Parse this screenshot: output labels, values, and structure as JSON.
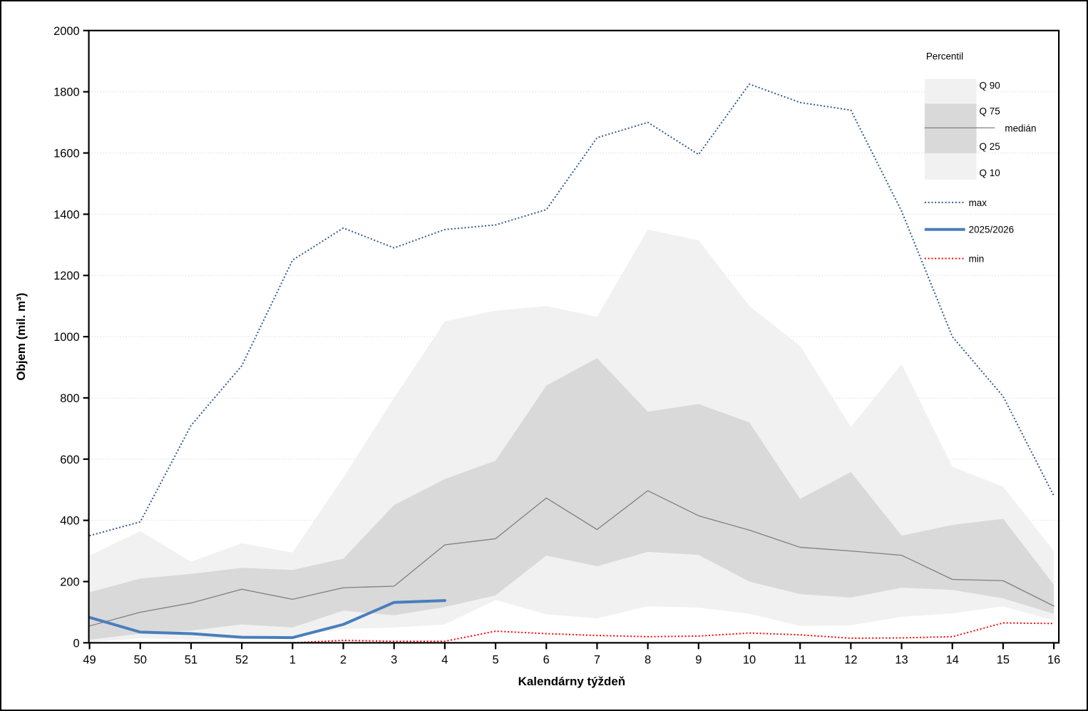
{
  "chart_data": {
    "type": "area",
    "subtype": "percentile-fan-chart-with-lines",
    "xlabel": "Kalendárny týždeň",
    "ylabel": "Objem (mil. m³)",
    "x_categories": [
      "49",
      "50",
      "51",
      "52",
      "1",
      "2",
      "3",
      "4",
      "5",
      "6",
      "7",
      "8",
      "9",
      "10",
      "11",
      "12",
      "13",
      "14",
      "15",
      "16"
    ],
    "ylim": [
      0,
      2000
    ],
    "ytick_step": 200,
    "y_tick_labels": [
      "0",
      "200",
      "400",
      "600",
      "800",
      "1000",
      "1200",
      "1400",
      "1600",
      "1800",
      "2000"
    ],
    "grid": "horizontal-dotted",
    "legend_position": "top-right-inside",
    "series": [
      {
        "name": "max",
        "type": "line",
        "style": "dotted",
        "color": "#2e5c8f",
        "width": 2,
        "values": [
          350,
          395,
          710,
          905,
          1250,
          1355,
          1290,
          1350,
          1365,
          1415,
          1650,
          1700,
          1595,
          1825,
          1765,
          1740,
          1410,
          1000,
          805,
          480
        ]
      },
      {
        "name": "Q 90",
        "type": "band-upper-light",
        "color": "#f1f1f1",
        "values": [
          285,
          365,
          265,
          325,
          295,
          540,
          800,
          1050,
          1085,
          1100,
          1065,
          1350,
          1315,
          1100,
          970,
          705,
          910,
          575,
          510,
          300
        ]
      },
      {
        "name": "Q 75",
        "type": "band-upper-dark",
        "color": "#d9d9d9",
        "values": [
          165,
          210,
          225,
          245,
          238,
          275,
          450,
          535,
          595,
          840,
          930,
          755,
          780,
          720,
          470,
          558,
          350,
          385,
          405,
          190
        ]
      },
      {
        "name": "medián",
        "type": "line",
        "style": "solid",
        "color": "#7f7f7f",
        "width": 1.3,
        "values": [
          55,
          100,
          130,
          175,
          142,
          180,
          185,
          320,
          340,
          473,
          370,
          497,
          415,
          368,
          312,
          300,
          286,
          207,
          203,
          120
        ]
      },
      {
        "name": "Q 25",
        "type": "band-lower-dark",
        "color": "#d9d9d9",
        "values": [
          10,
          30,
          40,
          60,
          50,
          105,
          90,
          117,
          155,
          285,
          250,
          297,
          287,
          200,
          159,
          148,
          180,
          173,
          145,
          95
        ]
      },
      {
        "name": "Q 10",
        "type": "band-lower-light",
        "color": "#f1f1f1",
        "values": [
          2,
          15,
          10,
          15,
          20,
          45,
          50,
          60,
          140,
          93,
          80,
          119,
          115,
          95,
          55,
          57,
          85,
          96,
          119,
          73
        ]
      },
      {
        "name": "min",
        "type": "line",
        "style": "dotted",
        "color": "#ff0000",
        "width": 2,
        "values": [
          0,
          0,
          0,
          0,
          0,
          8,
          5,
          5,
          38,
          30,
          24,
          20,
          22,
          32,
          26,
          15,
          16,
          20,
          65,
          63
        ]
      },
      {
        "name": "2025/2026",
        "type": "line",
        "style": "solid",
        "color": "#4a7ebb",
        "width": 4,
        "values": [
          83,
          35,
          30,
          18,
          17,
          60,
          132,
          138
        ]
      }
    ]
  },
  "legend": {
    "title": "Percentil",
    "q90": "Q 90",
    "q75": "Q 75",
    "median": "medián",
    "q25": "Q 25",
    "q10": "Q 10",
    "max": "max",
    "current": "2025/2026",
    "min": "min"
  },
  "colors": {
    "band_light": "#f1f1f1",
    "band_dark": "#d9d9d9",
    "median_line": "#7f7f7f",
    "max_line": "#2e5c8f",
    "min_line": "#ff0000",
    "current_line": "#4a7ebb",
    "gridline": "#dcdcdc",
    "axis": "#000000"
  }
}
